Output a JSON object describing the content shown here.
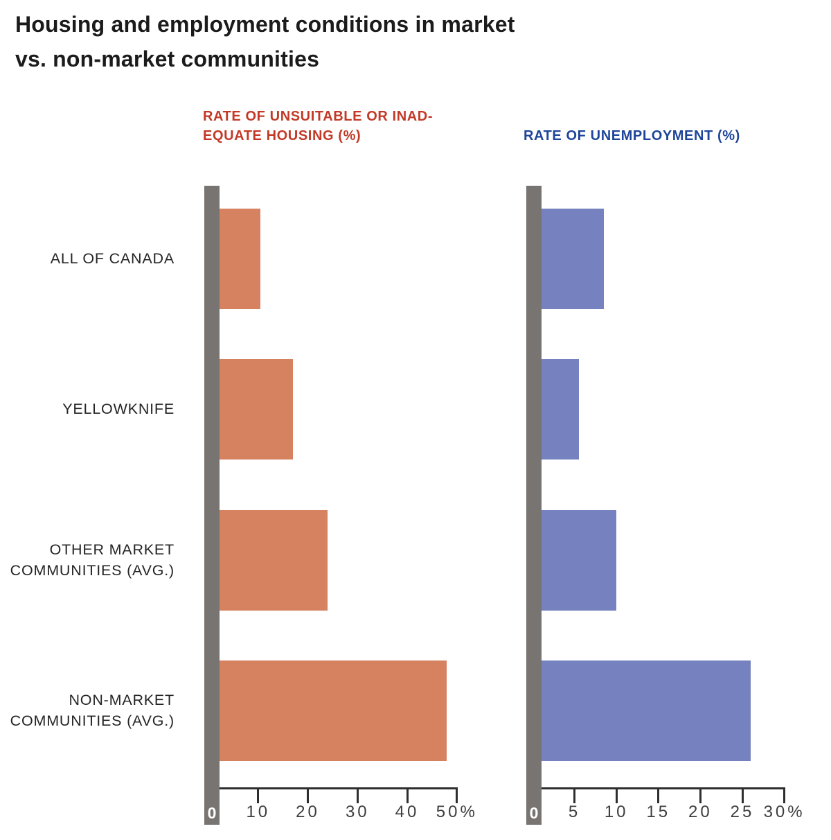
{
  "page": {
    "title_line1": "Housing and employment conditions in market",
    "title_line2": "vs. non-market communities"
  },
  "colors": {
    "housing_bar": "#d68261",
    "unemployment_bar": "#7681bf",
    "baseline_gray": "#787471",
    "axis_line": "#2e2e2e",
    "housing_header": "#c23a27",
    "unemployment_header": "#1e4599",
    "title_text": "#1b1b1b",
    "row_label_text": "#252525",
    "tick_text": "#3d3d3d",
    "zero_label_text": "#ffffff"
  },
  "row_labels": [
    {
      "lines": [
        "ALL OF CANADA"
      ]
    },
    {
      "lines": [
        "YELLOWKNIFE"
      ]
    },
    {
      "lines": [
        "OTHER MARKET",
        "COMMUNITIES (AVG.)"
      ]
    },
    {
      "lines": [
        "NON-MARKET",
        "COMMUNITIES (AVG.)"
      ]
    }
  ],
  "chart_data": [
    {
      "type": "bar",
      "orientation": "horizontal",
      "id": "housing",
      "title": "RATE OF UNSUITABLE OR INADEQUATE HOUSING (%)",
      "title_lines": [
        "RATE OF UNSUITABLE OR INAD-",
        "EQUATE HOUSING (%)"
      ],
      "categories": [
        "ALL OF CANADA",
        "YELLOWKNIFE",
        "OTHER MARKET COMMUNITIES (AVG.)",
        "NON-MARKET COMMUNITIES (AVG.)"
      ],
      "values": [
        10.5,
        17,
        24,
        48
      ],
      "unit": "%",
      "xlim": [
        0,
        50
      ],
      "ticks": [
        10,
        20,
        30,
        40,
        50
      ],
      "tick_labels": [
        "10",
        "20",
        "30",
        "40",
        "50%"
      ],
      "zero_label": "0",
      "grid": false,
      "legend": false
    },
    {
      "type": "bar",
      "orientation": "horizontal",
      "id": "unemployment",
      "title": "RATE OF UNEMPLOYMENT (%)",
      "title_lines": [
        "RATE OF UNEMPLOYMENT (%)"
      ],
      "categories": [
        "ALL OF CANADA",
        "YELLOWKNIFE",
        "OTHER MARKET COMMUNITIES (AVG.)",
        "NON-MARKET COMMUNITIES (AVG.)"
      ],
      "values": [
        8.5,
        5.5,
        10,
        26
      ],
      "unit": "%",
      "xlim": [
        0,
        30
      ],
      "ticks": [
        5,
        10,
        15,
        20,
        25,
        30
      ],
      "tick_labels": [
        "5",
        "10",
        "15",
        "20",
        "25",
        "30%"
      ],
      "zero_label": "0",
      "grid": false,
      "legend": false
    }
  ]
}
